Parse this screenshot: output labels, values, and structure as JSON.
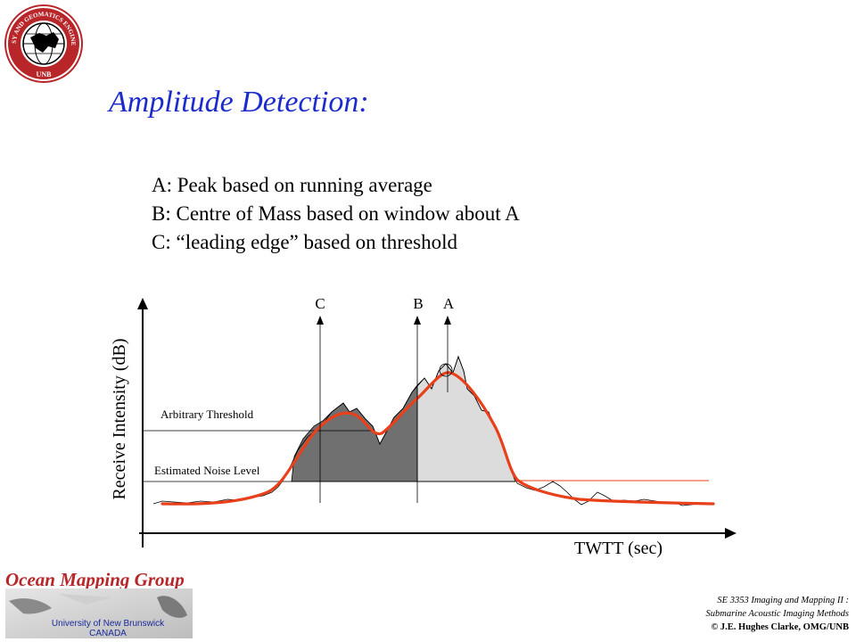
{
  "title": "Amplitude Detection:",
  "bullets": [
    "A:  Peak based on running average",
    "B:  Centre of Mass based on window about A",
    "C:  “leading edge” based on threshold"
  ],
  "diagram": {
    "y_axis_label": "Receive Intensity (dB)",
    "x_axis_label": "TWTT (sec)",
    "threshold_label": "Arbitrary Threshold",
    "noise_label": "Estimated Noise Level",
    "marker_c": "C",
    "marker_b": "B",
    "marker_a": "A",
    "colors": {
      "smoothed_curve": "#e8401a",
      "dark_fill": "#707070",
      "light_fill": "#dcdcdc",
      "noise_line": "#e8401a"
    }
  },
  "logo": {
    "ring_text": "GEODESY AND GEOMATICS ENGINEERING",
    "bottom_text": "UNB"
  },
  "footer": {
    "group_name": "Ocean Mapping Group",
    "university": "University of New Brunswick",
    "country": "CANADA",
    "course_line1": "SE 3353 Imaging and Mapping II :",
    "course_line2": "Submarine Acoustic Imaging Methods",
    "copyright": "© J.E. Hughes Clarke, OMG/UNB"
  }
}
